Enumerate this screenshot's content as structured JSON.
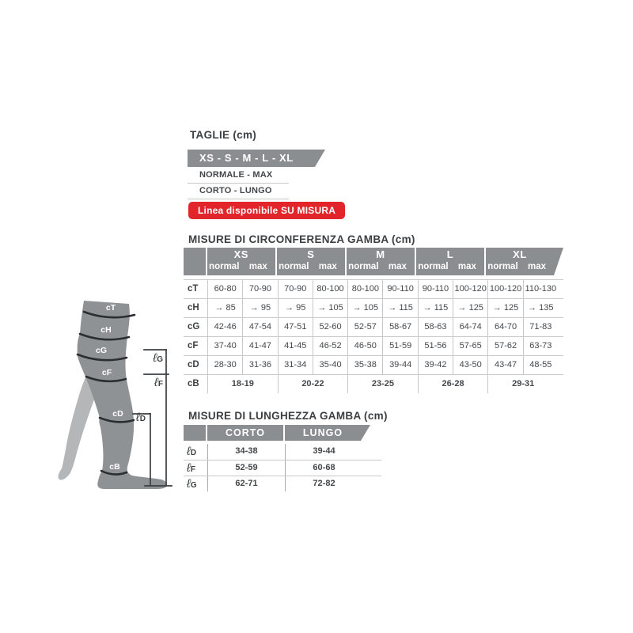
{
  "colors": {
    "header_gray": "#8b8e90",
    "accent_red": "#e2242b",
    "text_dark": "#3c3f42",
    "line_light": "#c6c8ca",
    "leg_front": "#8e9295",
    "leg_back": "#b4b6b8",
    "band_dark": "#2b2e31"
  },
  "taglie": {
    "title": "TAGLIE (cm)",
    "banner": "XS - S - M - L - XL",
    "options": [
      "NORMALE - MAX",
      "CORTO - LUNGO"
    ],
    "badge": "Linea disponibile SU MISURA"
  },
  "circumference": {
    "title": "MISURE DI CIRCONFERENZA GAMBA (cm)",
    "sizes": [
      "XS",
      "S",
      "M",
      "L",
      "XL"
    ],
    "subheaders": [
      "normal",
      "max"
    ],
    "rows": [
      {
        "label": "cT",
        "values": [
          "60-80",
          "70-90",
          "70-90",
          "80-100",
          "80-100",
          "90-110",
          "90-110",
          "100-120",
          "100-120",
          "110-130"
        ]
      },
      {
        "label": "cH",
        "values": [
          "→ 85",
          "→ 95",
          "→ 95",
          "→ 105",
          "→ 105",
          "→ 115",
          "→ 115",
          "→ 125",
          "→ 125",
          "→ 135"
        ]
      },
      {
        "label": "cG",
        "values": [
          "42-46",
          "47-54",
          "47-51",
          "52-60",
          "52-57",
          "58-67",
          "58-63",
          "64-74",
          "64-70",
          "71-83"
        ]
      },
      {
        "label": "cF",
        "values": [
          "37-40",
          "41-47",
          "41-45",
          "46-52",
          "46-50",
          "51-59",
          "51-56",
          "57-65",
          "57-62",
          "63-73"
        ]
      },
      {
        "label": "cD",
        "values": [
          "28-30",
          "31-36",
          "31-34",
          "35-40",
          "35-38",
          "39-44",
          "39-42",
          "43-50",
          "43-47",
          "48-55"
        ]
      },
      {
        "label": "cB",
        "merged": true,
        "values": [
          "18-19",
          "20-22",
          "23-25",
          "26-28",
          "29-31"
        ]
      }
    ]
  },
  "length": {
    "title": "MISURE DI LUNGHEZZA GAMBA (cm)",
    "columns": [
      "CORTO",
      "LUNGO"
    ],
    "rows": [
      {
        "prefix": "ℓ",
        "sub": "D",
        "values": [
          "34-38",
          "39-44"
        ]
      },
      {
        "prefix": "ℓ",
        "sub": "F",
        "values": [
          "52-59",
          "60-68"
        ]
      },
      {
        "prefix": "ℓ",
        "sub": "G",
        "values": [
          "62-71",
          "72-82"
        ]
      }
    ]
  },
  "leg": {
    "bands": [
      {
        "label": "cT"
      },
      {
        "label": "cH"
      },
      {
        "label": "cG"
      },
      {
        "label": "cF"
      },
      {
        "label": "cD"
      },
      {
        "label": "cB"
      }
    ],
    "lengths": [
      {
        "prefix": "ℓ",
        "sub": "G"
      },
      {
        "prefix": "ℓ",
        "sub": "F"
      },
      {
        "prefix": "ℓ",
        "sub": "D"
      }
    ]
  }
}
